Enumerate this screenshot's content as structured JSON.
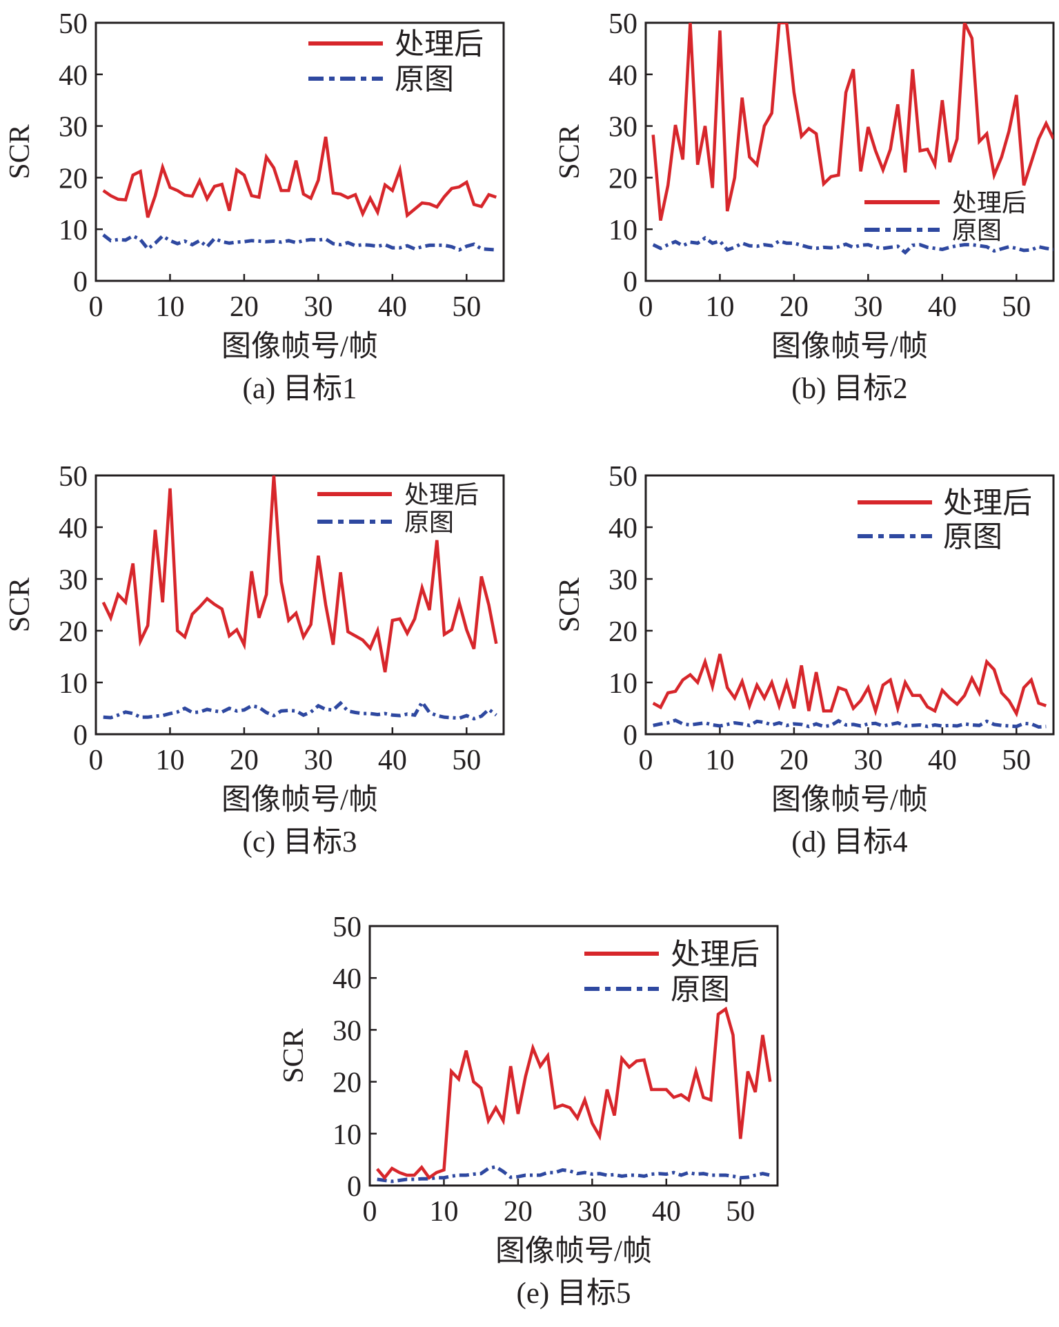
{
  "colors": {
    "processed": "#d7262b",
    "original": "#2e48a0",
    "axis": "#231f20"
  },
  "legend_labels": {
    "processed": "处理后",
    "original": "原图"
  },
  "chart_data": [
    {
      "type": "line",
      "caption": "(a) 目标1",
      "xlabel": "图像帧号/帧",
      "ylabel": "SCR",
      "xlim": [
        0,
        55
      ],
      "ylim": [
        0,
        50
      ],
      "xticks": [
        "0",
        "10",
        "20",
        "30",
        "40",
        "50"
      ],
      "yticks": [
        "0",
        "10",
        "20",
        "30",
        "40",
        "50"
      ],
      "legend_position": "top-right",
      "series": [
        {
          "name": "处理后",
          "style": "solid",
          "values": [
            17.5,
            16.5,
            15.8,
            15.7,
            20.5,
            21.2,
            12.3,
            16.5,
            22.0,
            18.1,
            17.5,
            16.6,
            16.4,
            19.4,
            15.9,
            18.3,
            18.7,
            13.6,
            21.5,
            20.5,
            16.5,
            16.2,
            24.0,
            21.9,
            17.5,
            17.5,
            23.3,
            16.8,
            16.0,
            19.5,
            27.9,
            17.0,
            16.8,
            16.1,
            16.7,
            13.0,
            16.0,
            13.3,
            18.6,
            17.5,
            21.5,
            12.7,
            13.9,
            15.1,
            14.9,
            14.3,
            16.3,
            17.9,
            18.2,
            19.1,
            14.8,
            14.4,
            16.7,
            16.2
          ]
        },
        {
          "name": "原图",
          "style": "dashdot",
          "values": [
            8.9,
            7.8,
            8.0,
            7.9,
            8.7,
            8.0,
            6.2,
            7.3,
            8.7,
            7.8,
            7.2,
            7.7,
            7.0,
            7.8,
            6.6,
            8.2,
            7.6,
            7.3,
            7.5,
            7.6,
            7.8,
            7.7,
            7.6,
            7.7,
            7.5,
            7.8,
            7.4,
            7.8,
            8.0,
            7.9,
            8.1,
            7.2,
            7.0,
            7.4,
            6.8,
            7.0,
            6.9,
            6.7,
            7.0,
            6.4,
            6.4,
            6.8,
            6.2,
            6.6,
            6.9,
            6.9,
            6.9,
            6.6,
            6.0,
            6.7,
            7.1,
            6.2,
            6.1,
            6.0
          ]
        }
      ]
    },
    {
      "type": "line",
      "caption": "(b) 目标2",
      "xlabel": "图像帧号/帧",
      "ylabel": "SCR",
      "xlim": [
        0,
        55
      ],
      "ylim": [
        0,
        50
      ],
      "xticks": [
        "0",
        "10",
        "20",
        "30",
        "40",
        "50"
      ],
      "yticks": [
        "0",
        "10",
        "20",
        "30",
        "40",
        "50"
      ],
      "legend_position": "right",
      "series": [
        {
          "name": "处理后",
          "style": "solid",
          "values": [
            28.3,
            11.7,
            18.5,
            30.2,
            23.5,
            50.0,
            22.5,
            30.0,
            18.0,
            48.5,
            13.5,
            20.0,
            35.5,
            24.0,
            22.5,
            30.0,
            32.5,
            50.0,
            50.0,
            36.5,
            28.0,
            29.5,
            28.5,
            18.8,
            20.2,
            20.5,
            36.5,
            41.0,
            21.2,
            29.8,
            25.2,
            21.5,
            25.5,
            34.2,
            21.0,
            41.0,
            25.2,
            25.5,
            22.5,
            35.0,
            23.0,
            27.5,
            50.0,
            47.0,
            27.0,
            28.5,
            20.5,
            24.0,
            29.0,
            36.0,
            18.5,
            23.0,
            27.5,
            30.5,
            27.5
          ]
        },
        {
          "name": "原图",
          "style": "dashdot",
          "values": [
            7.0,
            6.3,
            7.0,
            7.6,
            6.8,
            7.5,
            7.3,
            8.3,
            7.3,
            7.7,
            6.0,
            6.5,
            7.3,
            6.8,
            6.7,
            7.0,
            6.8,
            7.7,
            7.3,
            7.3,
            6.9,
            6.5,
            6.3,
            6.5,
            6.4,
            6.6,
            7.1,
            6.5,
            6.9,
            7.0,
            6.5,
            6.3,
            6.5,
            6.7,
            5.5,
            6.9,
            7.0,
            6.5,
            6.3,
            6.1,
            6.5,
            6.8,
            7.0,
            7.0,
            6.8,
            6.6,
            5.8,
            6.2,
            6.6,
            6.3,
            5.9,
            6.0,
            6.6,
            6.3,
            6.1
          ]
        }
      ]
    },
    {
      "type": "line",
      "caption": "(c) 目标3",
      "xlabel": "图像帧号/帧",
      "ylabel": "SCR",
      "xlim": [
        0,
        55
      ],
      "ylim": [
        0,
        50
      ],
      "xticks": [
        "0",
        "10",
        "20",
        "30",
        "40",
        "50"
      ],
      "yticks": [
        "0",
        "10",
        "20",
        "30",
        "40",
        "50"
      ],
      "legend_position": "top-right",
      "series": [
        {
          "name": "处理后",
          "style": "solid",
          "values": [
            25.5,
            22.5,
            27.0,
            25.5,
            33.0,
            18.0,
            21.0,
            39.5,
            25.5,
            47.5,
            20.0,
            18.8,
            23.2,
            24.6,
            26.2,
            25.1,
            24.2,
            19.0,
            20.2,
            17.3,
            31.5,
            22.5,
            27.0,
            50.0,
            29.5,
            22.0,
            23.4,
            18.8,
            21.2,
            34.5,
            25.0,
            17.3,
            31.3,
            19.8,
            19.0,
            18.2,
            16.6,
            20.0,
            12.0,
            22.0,
            22.3,
            19.5,
            22.3,
            28.3,
            24.0,
            37.5,
            19.3,
            20.2,
            25.5,
            20.2,
            16.5,
            30.5,
            25.0,
            17.5
          ]
        },
        {
          "name": "原图",
          "style": "dashdot",
          "values": [
            3.3,
            3.2,
            3.7,
            4.3,
            4.0,
            3.3,
            3.3,
            3.5,
            3.6,
            4.0,
            4.3,
            5.0,
            4.2,
            4.3,
            4.8,
            4.5,
            4.3,
            5.0,
            4.5,
            4.7,
            5.5,
            5.2,
            4.2,
            3.6,
            4.5,
            4.6,
            4.5,
            3.7,
            4.3,
            5.5,
            4.8,
            4.7,
            6.0,
            4.5,
            4.2,
            4.0,
            4.0,
            3.8,
            4.0,
            3.7,
            3.6,
            3.9,
            3.7,
            6.2,
            4.2,
            3.6,
            3.3,
            3.2,
            3.1,
            3.6,
            3.0,
            3.5,
            4.8,
            3.7
          ]
        }
      ]
    },
    {
      "type": "line",
      "caption": "(d) 目标4",
      "xlabel": "图像帧号/帧",
      "ylabel": "SCR",
      "xlim": [
        0,
        55
      ],
      "ylim": [
        0,
        50
      ],
      "xticks": [
        "0",
        "10",
        "20",
        "30",
        "40",
        "50"
      ],
      "yticks": [
        "0",
        "10",
        "20",
        "30",
        "40",
        "50"
      ],
      "legend_position": "top-right",
      "series": [
        {
          "name": "处理后",
          "style": "solid",
          "values": [
            6.0,
            5.2,
            8.0,
            8.3,
            10.5,
            11.5,
            10.0,
            14.0,
            9.2,
            15.5,
            9.0,
            7.0,
            10.2,
            5.5,
            9.5,
            7.0,
            10.0,
            5.5,
            10.0,
            5.0,
            13.3,
            4.5,
            12.0,
            4.5,
            4.5,
            9.0,
            8.5,
            5.0,
            6.5,
            9.0,
            4.5,
            9.5,
            10.5,
            5.0,
            10.0,
            7.5,
            7.5,
            5.3,
            4.5,
            8.5,
            7.0,
            5.8,
            7.5,
            10.8,
            8.0,
            14.0,
            12.5,
            8.0,
            6.5,
            4.0,
            9.0,
            10.5,
            6.0,
            5.5
          ]
        },
        {
          "name": "原图",
          "style": "dashdot",
          "values": [
            1.7,
            2.0,
            2.2,
            2.7,
            2.0,
            1.8,
            2.0,
            2.2,
            1.8,
            1.6,
            1.9,
            2.2,
            2.0,
            1.7,
            2.5,
            2.3,
            1.8,
            2.2,
            1.7,
            2.0,
            1.9,
            1.5,
            2.0,
            1.5,
            1.7,
            2.6,
            1.8,
            1.9,
            1.6,
            2.0,
            2.1,
            1.6,
            1.9,
            2.2,
            1.6,
            1.7,
            1.8,
            1.5,
            1.8,
            1.6,
            1.7,
            1.6,
            2.0,
            1.8,
            1.7,
            2.5,
            1.9,
            1.7,
            1.6,
            1.5,
            2.1,
            2.0,
            1.4,
            1.5
          ]
        }
      ]
    },
    {
      "type": "line",
      "caption": "(e) 目标5",
      "xlabel": "图像帧号/帧",
      "ylabel": "SCR",
      "xlim": [
        0,
        55
      ],
      "ylim": [
        0,
        50
      ],
      "xticks": [
        "0",
        "10",
        "20",
        "30",
        "40",
        "50"
      ],
      "yticks": [
        "0",
        "10",
        "20",
        "30",
        "40",
        "50"
      ],
      "legend_position": "top-right",
      "series": [
        {
          "name": "处理后",
          "style": "solid",
          "values": [
            3.2,
            1.5,
            3.3,
            2.5,
            2.0,
            2.0,
            3.5,
            1.5,
            2.5,
            3.0,
            22.0,
            20.5,
            26.0,
            20.0,
            18.8,
            12.5,
            15.0,
            12.5,
            23.0,
            13.8,
            21.0,
            26.5,
            23.0,
            25.0,
            15.0,
            15.5,
            15.0,
            13.0,
            16.5,
            12.0,
            9.5,
            18.5,
            13.5,
            24.5,
            22.8,
            24.0,
            24.2,
            18.5,
            18.5,
            18.5,
            17.0,
            17.5,
            16.5,
            22.0,
            17.0,
            16.5,
            33.0,
            34.0,
            29.0,
            9.0,
            22.0,
            18.0,
            29.0,
            20.0
          ]
        },
        {
          "name": "原图",
          "style": "dashdot",
          "values": [
            1.2,
            1.0,
            0.8,
            1.0,
            1.2,
            1.2,
            1.3,
            1.3,
            1.5,
            1.5,
            1.8,
            2.0,
            2.0,
            2.2,
            2.3,
            3.3,
            3.6,
            2.7,
            1.6,
            1.7,
            2.0,
            2.0,
            2.0,
            2.5,
            2.5,
            3.0,
            2.8,
            2.3,
            2.5,
            2.2,
            2.3,
            2.0,
            2.1,
            1.8,
            2.0,
            2.0,
            1.8,
            2.2,
            2.3,
            2.2,
            2.5,
            2.0,
            2.5,
            2.2,
            2.3,
            2.0,
            2.0,
            2.0,
            1.8,
            1.5,
            1.6,
            2.0,
            2.3,
            2.0
          ]
        }
      ]
    }
  ]
}
